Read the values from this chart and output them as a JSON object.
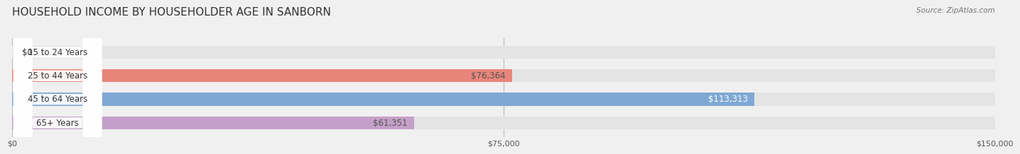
{
  "title": "HOUSEHOLD INCOME BY HOUSEHOLDER AGE IN SANBORN",
  "source": "Source: ZipAtlas.com",
  "categories": [
    "15 to 24 Years",
    "25 to 44 Years",
    "45 to 64 Years",
    "65+ Years"
  ],
  "values": [
    0,
    76364,
    113313,
    61351
  ],
  "bar_colors": [
    "#f5cfa0",
    "#e8857a",
    "#7fa8d4",
    "#c4a0c8"
  ],
  "bar_label_colors": [
    "#555555",
    "#555555",
    "#ffffff",
    "#555555"
  ],
  "label_texts": [
    "$0",
    "$76,364",
    "$113,313",
    "$61,351"
  ],
  "background_color": "#f0f0f0",
  "bar_bg_color": "#e4e4e4",
  "xlim": [
    0,
    150000
  ],
  "xtick_values": [
    0,
    75000,
    150000
  ],
  "xtick_labels": [
    "$0",
    "$75,000",
    "$150,000"
  ],
  "bar_height": 0.55,
  "title_fontsize": 11,
  "label_fontsize": 8.5,
  "tick_fontsize": 8,
  "source_fontsize": 7.5
}
